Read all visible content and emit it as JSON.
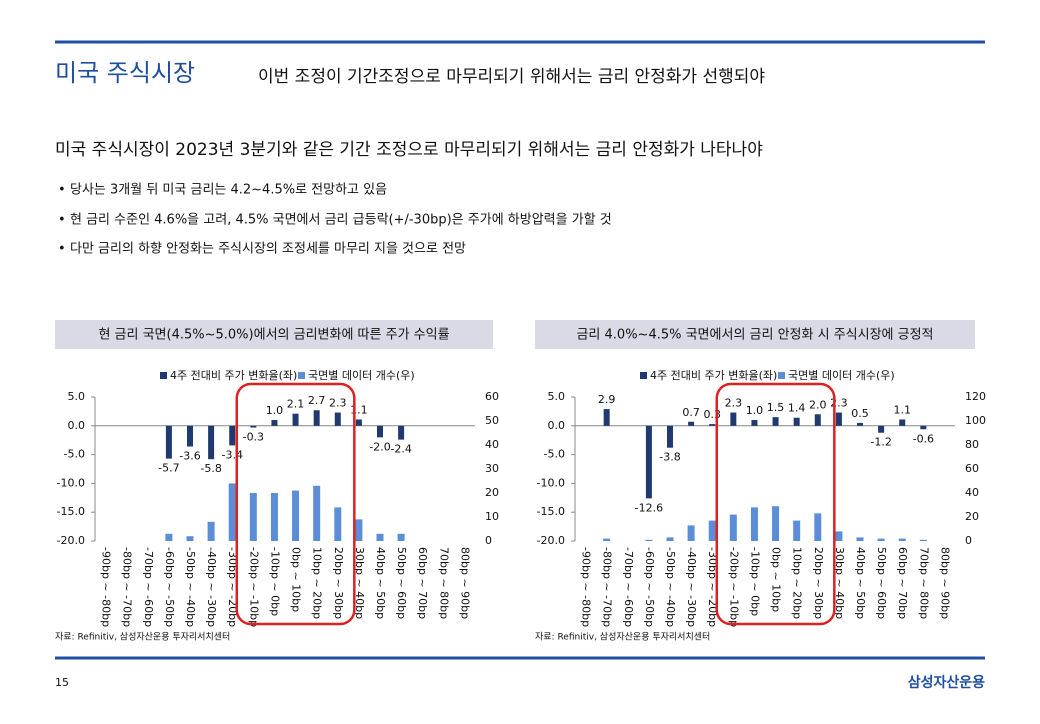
{
  "header": {
    "title": "미국 주식시장",
    "subtitle": "이번 조정이 기간조정으로 마무리되기 위해서는 금리 안정화가 선행되야"
  },
  "headline": "미국 주식시장이 2023년 3분기와 같은 기간 조정으로 마무리되기 위해서는 금리 안정화가 나타나야",
  "bullets": [
    "당사는 3개월 뒤 미국 금리는 4.2~4.5%로 전망하고 있음",
    "현 금리 수준인 4.6%을 고려, 4.5% 국면에서 금리 급등락(+/-30bp)은 주가에 하방압력을 가할 것",
    "다만 금리의 하향 안정화는 주식시장의 조정세를 마무리 지을 것으로 전망"
  ],
  "chart_data": [
    {
      "type": "bar",
      "title": "현 금리 국면(4.5%~5.0%)에서의 금리변화에 따른 주가 수익률",
      "categories": [
        "-90bp ~ -80bp",
        "-80bp ~ -70bp",
        "-70bp ~ -60bp",
        "-60bp ~ -50bp",
        "-50bp ~ -40bp",
        "-40bp ~ -30bp",
        "-30bp ~ -20bp",
        "-20bp ~ -10bp",
        "-10bp ~ 0bp",
        "0bp ~ 10bp",
        "10bp ~ 20bp",
        "20bp ~ 30bp",
        "30bp ~ 40bp",
        "40bp ~ 50bp",
        "50bp ~ 60bp",
        "60bp ~ 70bp",
        "70bp ~ 80bp",
        "80bp ~ 90bp"
      ],
      "series": [
        {
          "name": "4주 전대비 주가 변화율(좌)",
          "color": "#1f3a70",
          "values": [
            null,
            null,
            null,
            -5.7,
            -3.6,
            -5.8,
            -3.4,
            -0.3,
            1.0,
            2.1,
            2.7,
            2.3,
            1.1,
            -2.0,
            -2.4,
            null,
            null,
            null
          ],
          "value_labels": [
            null,
            null,
            null,
            "-5.7",
            "-3.6",
            "-5.8",
            "-3.4",
            "-0.3",
            "1.0",
            "2.1",
            "2.7",
            "2.3",
            "1.1",
            "-2.0",
            "-2.4",
            null,
            null,
            null
          ]
        },
        {
          "name": "국면별 데이터 개수(우)",
          "color": "#5b8ed6",
          "axis": "y2",
          "values": [
            0,
            0,
            0,
            3,
            2,
            8,
            24,
            20,
            20,
            21,
            23,
            14,
            9,
            3,
            3,
            0,
            0,
            0
          ]
        }
      ],
      "ylim": [
        -20,
        5
      ],
      "yticks": [
        {
          "value": -20,
          "label": "-20.0"
        },
        {
          "value": -15,
          "label": "-15.0"
        },
        {
          "value": -10,
          "label": "-10.0"
        },
        {
          "value": -5,
          "label": "-5.0"
        },
        {
          "value": 0,
          "label": "0.0"
        },
        {
          "value": 5,
          "label": "5.0"
        }
      ],
      "y2lim": [
        0,
        60
      ],
      "y2ticks": [
        0,
        10,
        20,
        30,
        40,
        50,
        60
      ],
      "source": "자료: Refinitiv, 삼성자산운용 투자리서치센터"
    },
    {
      "type": "bar",
      "title": "금리 4.0%~4.5% 국면에서의 금리 안정화 시 주식시장에 긍정적",
      "categories": [
        "-90bp ~ -80bp",
        "-80bp ~ -70bp",
        "-70bp ~ -60bp",
        "-60bp ~ -50bp",
        "-50bp ~ -40bp",
        "-40bp ~ -30bp",
        "-30bp ~ -20bp",
        "-20bp ~ -10bp",
        "-10bp ~ 0bp",
        "0bp ~ 10bp",
        "10bp ~ 20bp",
        "20bp ~ 30bp",
        "30bp ~ 40bp",
        "40bp ~ 50bp",
        "50bp ~ 60bp",
        "60bp ~ 70bp",
        "70bp ~ 80bp",
        "80bp ~ 90bp"
      ],
      "series": [
        {
          "name": "4주 전대비 주가 변화율(좌)",
          "color": "#1f3a70",
          "values": [
            null,
            2.9,
            null,
            -12.6,
            -3.8,
            0.7,
            0.3,
            2.3,
            1.0,
            1.5,
            1.4,
            2.0,
            2.3,
            0.5,
            -1.2,
            1.1,
            -0.6,
            null
          ],
          "value_labels": [
            null,
            "2.9",
            null,
            "-12.6",
            "-3.8",
            "0.7",
            "0.3",
            "2.3",
            "1.0",
            "1.5",
            "1.4",
            "2.0",
            "2.3",
            "0.5",
            "-1.2",
            "1.1",
            "-0.6",
            null
          ]
        },
        {
          "name": "국면별 데이터 개수(우)",
          "color": "#5b8ed6",
          "axis": "y2",
          "values": [
            0,
            2,
            0,
            1,
            3,
            13,
            17,
            22,
            28,
            29,
            17,
            23,
            8,
            3,
            2,
            2,
            1,
            0
          ]
        }
      ],
      "ylim": [
        -20,
        5
      ],
      "yticks": [
        {
          "value": -20,
          "label": "-20.0"
        },
        {
          "value": -15,
          "label": "-15.0"
        },
        {
          "value": -10,
          "label": "-10.0"
        },
        {
          "value": -5,
          "label": "-5.0"
        },
        {
          "value": 0,
          "label": "0.0"
        },
        {
          "value": 5,
          "label": "5.0"
        }
      ],
      "y2lim": [
        0,
        120
      ],
      "y2ticks": [
        0,
        20,
        40,
        60,
        80,
        100,
        120
      ],
      "source": "자료: Refinitiv, 삼성자산운용 투자리서치센터"
    }
  ],
  "footer": {
    "page": "15",
    "logo": "삼성자산운용"
  }
}
